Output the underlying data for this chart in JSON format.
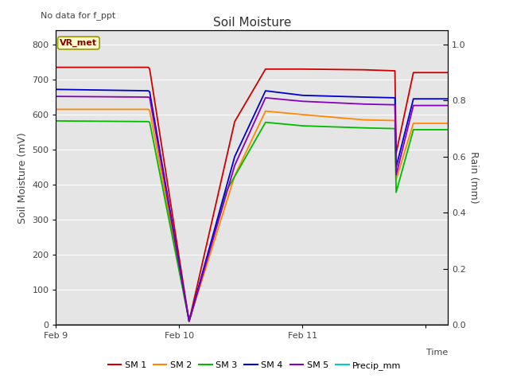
{
  "title": "Soil Moisture",
  "xlabel": "Time",
  "ylabel_left": "Soil Moisture (mV)",
  "ylabel_right": "Rain (mm)",
  "top_left_text": "No data for f_ppt",
  "annotation_text": "VR_met",
  "ylim_left": [
    0,
    840
  ],
  "ylim_right": [
    0,
    1.05
  ],
  "yticks_left": [
    0,
    100,
    200,
    300,
    400,
    500,
    600,
    700,
    800
  ],
  "yticks_right": [
    0.0,
    0.2,
    0.4,
    0.6,
    0.8,
    1.0
  ],
  "bg_color": "#e5e5e5",
  "fig_color": "#ffffff",
  "series": {
    "SM1": {
      "color": "#cc0000",
      "label": "SM 1",
      "x": [
        0.0,
        0.75,
        0.76,
        1.08,
        1.45,
        1.7,
        2.0,
        2.5,
        2.75,
        2.76,
        2.9,
        3.0,
        3.18
      ],
      "y": [
        735,
        735,
        730,
        10,
        580,
        730,
        730,
        728,
        725,
        490,
        720,
        720,
        720
      ]
    },
    "SM2": {
      "color": "#ff8800",
      "label": "SM 2",
      "x": [
        0.0,
        0.75,
        0.76,
        1.08,
        1.45,
        1.7,
        2.0,
        2.5,
        2.75,
        2.76,
        2.9,
        3.0,
        3.18
      ],
      "y": [
        615,
        615,
        612,
        10,
        425,
        610,
        600,
        585,
        583,
        415,
        575,
        575,
        575
      ]
    },
    "SM3": {
      "color": "#00bb00",
      "label": "SM 3",
      "x": [
        0.0,
        0.75,
        0.76,
        1.08,
        1.38,
        1.7,
        2.0,
        2.5,
        2.75,
        2.76,
        2.9,
        3.0,
        3.18
      ],
      "y": [
        582,
        580,
        578,
        10,
        380,
        578,
        568,
        562,
        560,
        378,
        557,
        557,
        557
      ]
    },
    "SM4": {
      "color": "#0000cc",
      "label": "SM 4",
      "x": [
        0.0,
        0.75,
        0.76,
        1.08,
        1.45,
        1.7,
        2.0,
        2.5,
        2.75,
        2.76,
        2.9,
        3.0,
        3.18
      ],
      "y": [
        672,
        668,
        665,
        10,
        480,
        668,
        655,
        650,
        648,
        450,
        645,
        645,
        645
      ]
    },
    "SM5": {
      "color": "#8800bb",
      "label": "SM 5",
      "x": [
        0.0,
        0.75,
        0.76,
        1.08,
        1.45,
        1.7,
        2.0,
        2.5,
        2.75,
        2.76,
        2.9,
        3.0,
        3.18
      ],
      "y": [
        652,
        650,
        648,
        10,
        455,
        648,
        638,
        630,
        628,
        428,
        626,
        626,
        626
      ]
    },
    "Precip": {
      "color": "#00cccc",
      "label": "Precip_mm",
      "x": [
        0.0,
        3.18
      ],
      "y": [
        0.0,
        0.0
      ]
    }
  },
  "xlim": [
    0.0,
    3.18
  ],
  "xtick_positions": [
    0.0,
    1.0,
    2.0,
    3.0
  ],
  "xtick_labels": [
    "Feb 9",
    "Feb 10",
    "Feb 11",
    ""
  ],
  "grid_color": "#ffffff",
  "legend_colors": [
    "#cc0000",
    "#ff8800",
    "#00bb00",
    "#0000cc",
    "#8800bb",
    "#00cccc"
  ],
  "legend_labels": [
    "SM 1",
    "SM 2",
    "SM 3",
    "SM 4",
    "SM 5",
    "Precip_mm"
  ]
}
